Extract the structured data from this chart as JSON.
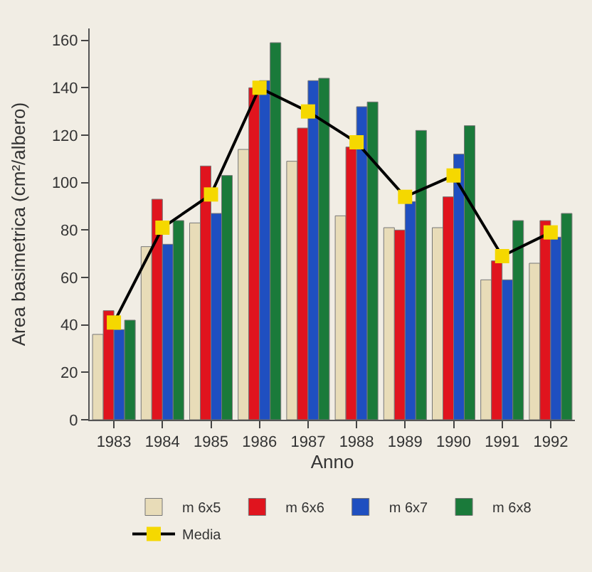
{
  "chart_data": {
    "type": "bar",
    "xlabel": "Anno",
    "ylabel": "Area basimetrica (cm²/albero)",
    "categories": [
      "1983",
      "1984",
      "1985",
      "1986",
      "1987",
      "1988",
      "1989",
      "1990",
      "1991",
      "1992"
    ],
    "series": [
      {
        "name": "m 6x5",
        "color": "#e8dcb8",
        "values": [
          36,
          73,
          83,
          114,
          109,
          86,
          81,
          81,
          59,
          66
        ]
      },
      {
        "name": "m 6x6",
        "color": "#e0141e",
        "values": [
          46,
          93,
          107,
          140,
          123,
          115,
          80,
          94,
          67,
          84
        ]
      },
      {
        "name": "m 6x7",
        "color": "#1f4fc0",
        "values": [
          38,
          74,
          87,
          143,
          143,
          132,
          92,
          112,
          59,
          77
        ]
      },
      {
        "name": "m 6x8",
        "color": "#1a7a3a",
        "values": [
          42,
          84,
          103,
          159,
          144,
          134,
          122,
          124,
          84,
          87
        ]
      },
      {
        "name": "Media",
        "type": "line",
        "color": "#f5d800",
        "values": [
          41,
          81,
          95,
          140,
          130,
          117,
          94,
          103,
          69,
          79
        ],
        "marker": "square"
      }
    ],
    "ylim": [
      0,
      165
    ],
    "yticks": [
      0,
      20,
      40,
      60,
      80,
      100,
      120,
      140,
      160
    ],
    "grid": false,
    "legend": "bottom"
  }
}
